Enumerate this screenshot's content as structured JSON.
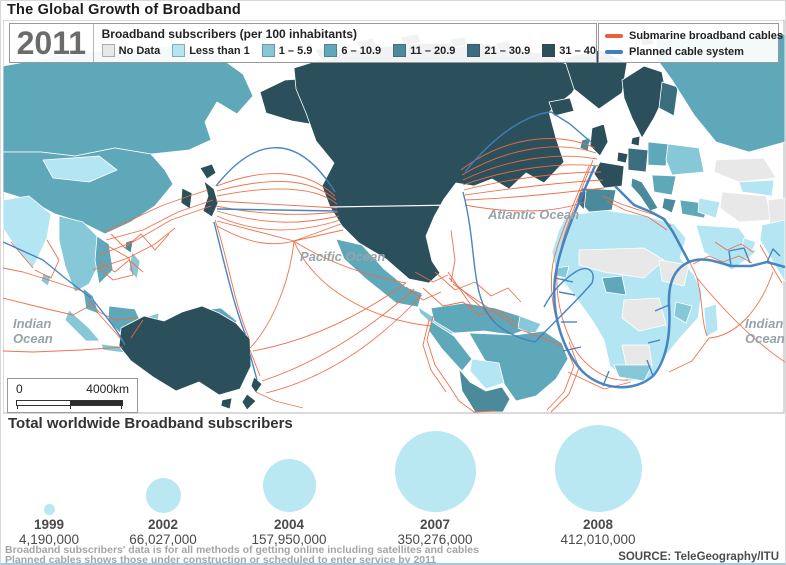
{
  "page": {
    "title": "The Global Growth of Broadband"
  },
  "map": {
    "year": "2011",
    "legend_title": "Broadband subscribers (per 100 inhabitants)",
    "legend_items": [
      {
        "label": "No Data",
        "color": "#e8e8e8"
      },
      {
        "label": "Less than 1",
        "color": "#b3e5f3"
      },
      {
        "label": "1 – 5.9",
        "color": "#86c7d8"
      },
      {
        "label": "6 – 10.9",
        "color": "#5fa8ba"
      },
      {
        "label": "11 – 20.9",
        "color": "#4b8a9b"
      },
      {
        "label": "21 – 30.9",
        "color": "#3a6d7d"
      },
      {
        "label": "31 – 40",
        "color": "#2b4f5b"
      }
    ],
    "cable_legend": [
      {
        "label": "Submarine broadband cables",
        "color": "#e8603e"
      },
      {
        "label": "Planned cable system",
        "color": "#3f7fbf"
      }
    ],
    "ocean_labels": {
      "indian_west": "Indian Ocean",
      "pacific": "Pacific Ocean",
      "atlantic": "Atlantic Ocean",
      "indian_east": "Indian Ocean"
    },
    "scale": {
      "start": "0",
      "end": "4000km"
    }
  },
  "chart_data": {
    "type": "bubble",
    "title": "Total worldwide Broadband subscribers",
    "categories": [
      "1999",
      "2002",
      "2004",
      "2007",
      "2008"
    ],
    "values": [
      4190000,
      66027000,
      157950000,
      350276000,
      412010000
    ],
    "value_labels": [
      "4,190,000",
      "66,027,000",
      "157,950,000",
      "350,276,000",
      "412,010,000"
    ],
    "bubble_color": "#b9e7f2"
  },
  "footer": {
    "note1": "Broadband subscribers' data is for all methods of getting online including satellites and cables",
    "note2": "Planned cables shows those under construction or scheduled to enter service by 2011",
    "source": "SOURCE: TeleGeography/ITU"
  }
}
